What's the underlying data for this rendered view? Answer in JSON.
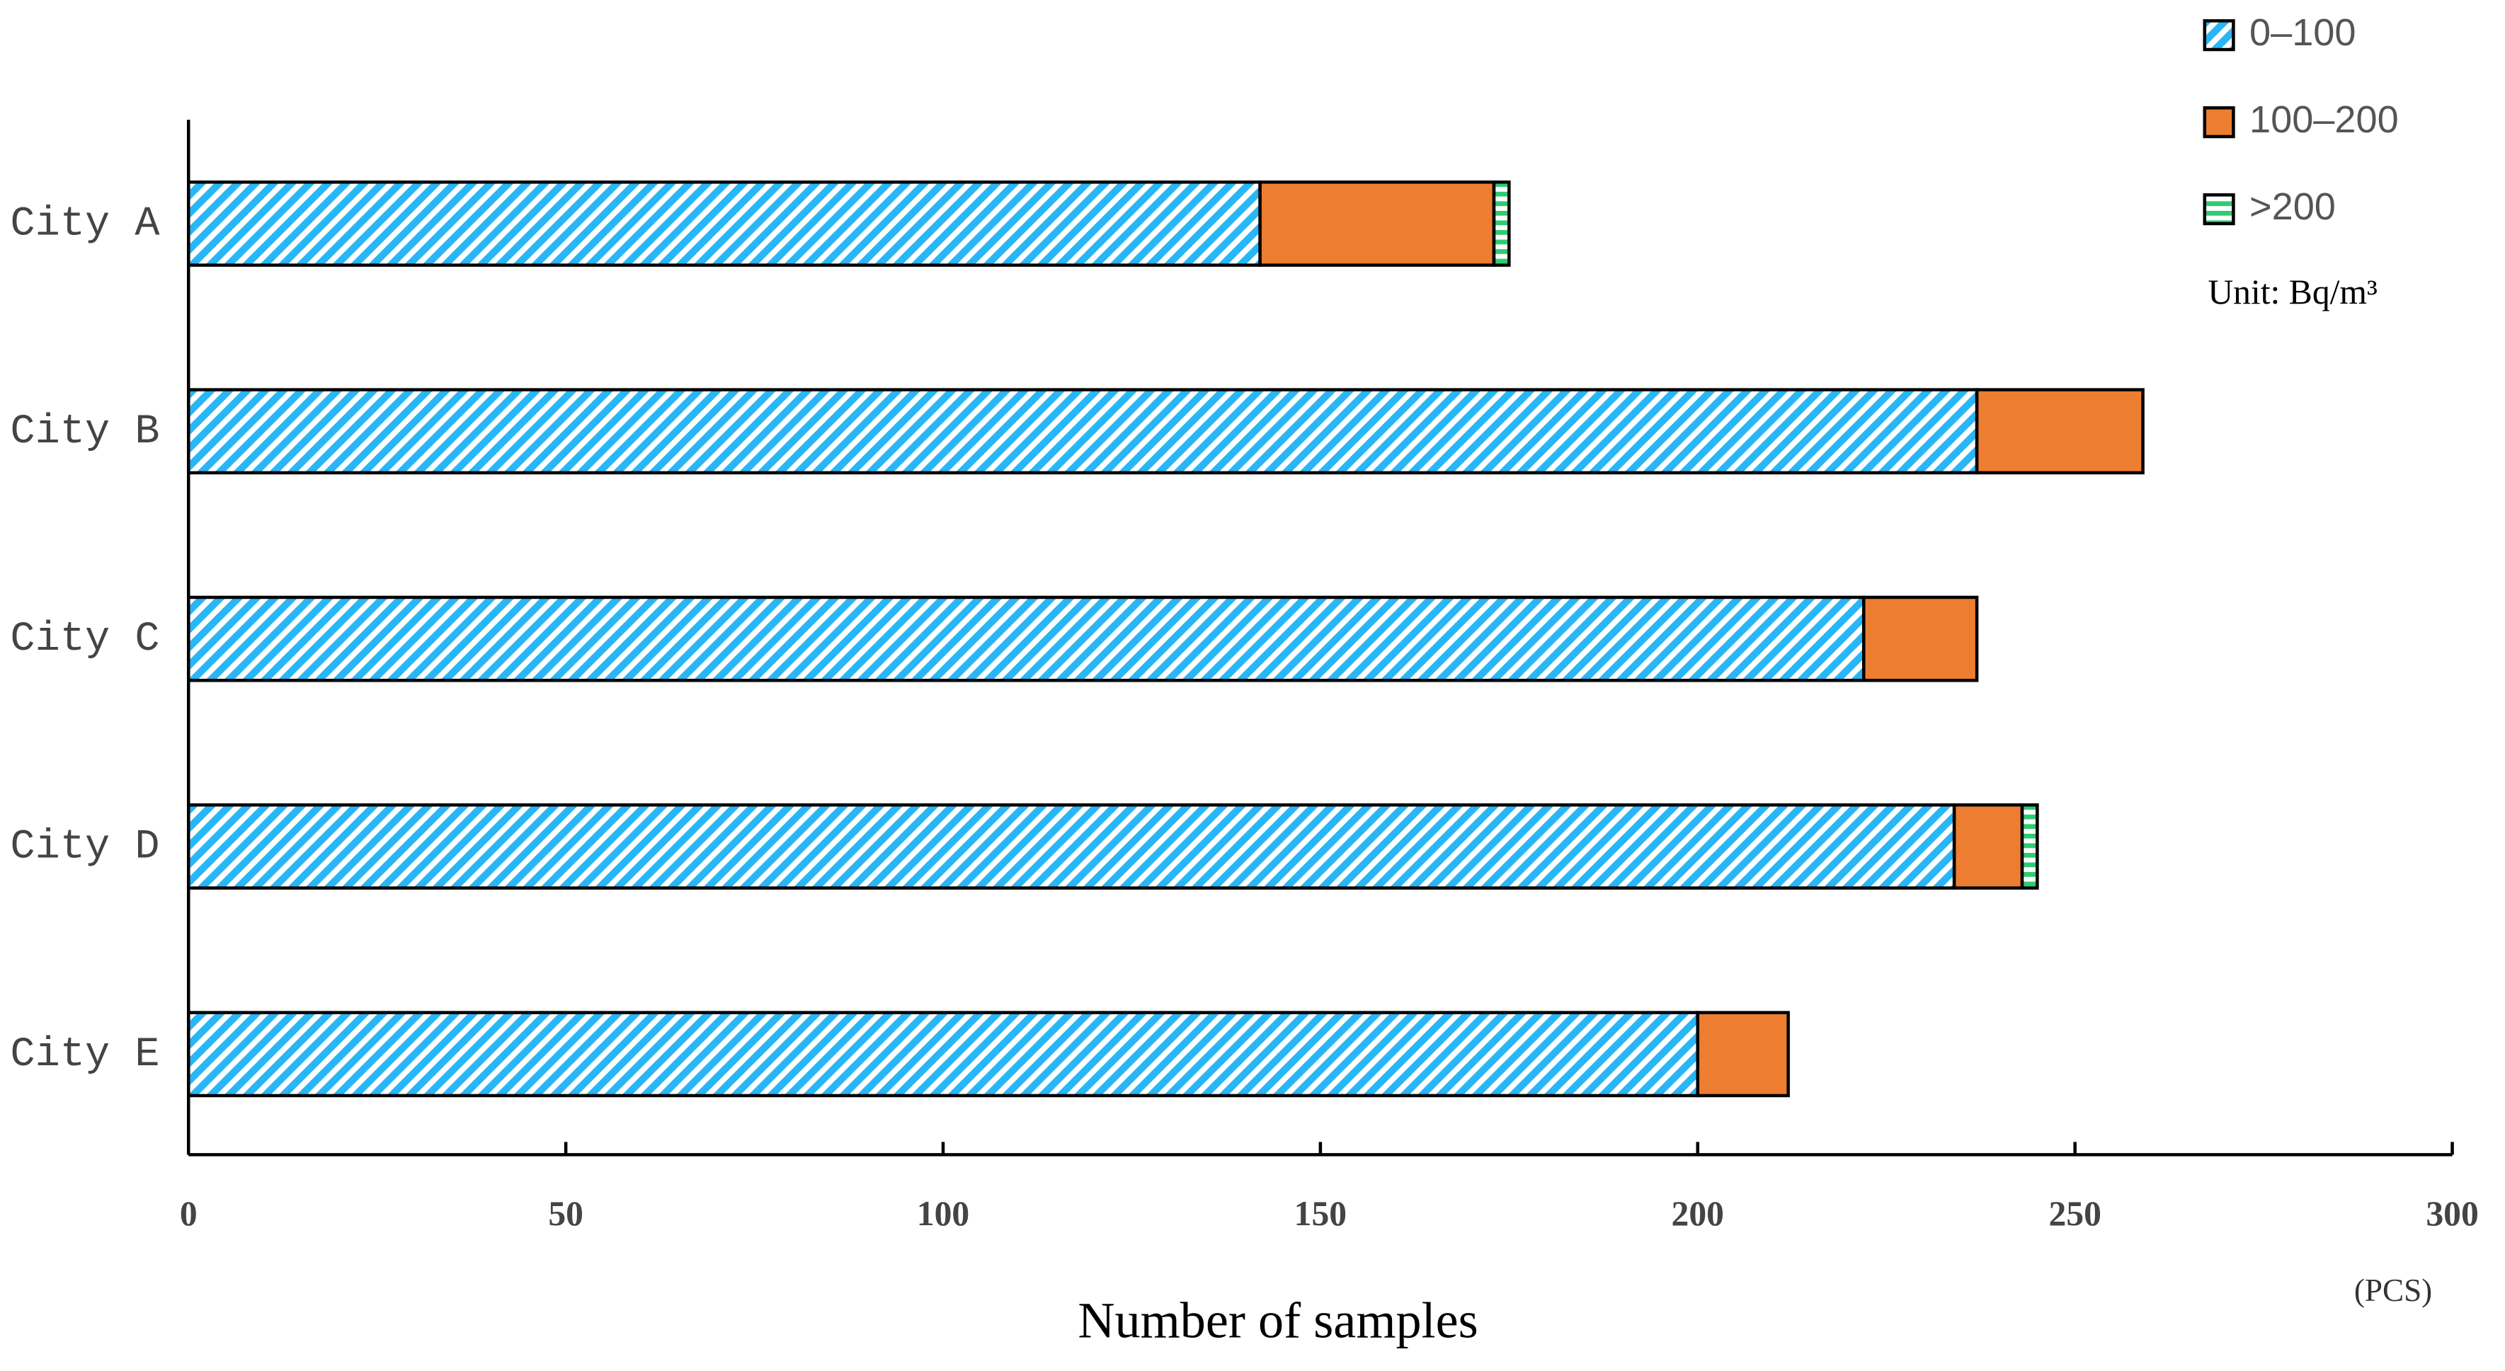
{
  "chart_data": {
    "type": "stacked-hbar",
    "categories": [
      "City A",
      "City B",
      "City C",
      "City D",
      "City E"
    ],
    "series": [
      {
        "name": "0–100",
        "color": "#29b6f6",
        "hatch": "diagonal",
        "values": [
          142,
          237,
          222,
          234,
          200
        ]
      },
      {
        "name": "100–200",
        "color": "#ed7d31",
        "hatch": null,
        "values": [
          31,
          22,
          15,
          9,
          12
        ]
      },
      {
        "name": ">200",
        "color": "#2ecc71",
        "hatch": "horizontal",
        "values": [
          2,
          0,
          0,
          2,
          0
        ]
      }
    ],
    "xlim": [
      0,
      300
    ],
    "xticks": [
      0,
      50,
      100,
      150,
      200,
      250,
      300
    ],
    "x_label": "Number of samples",
    "x_unit": "(PCS)",
    "legend_note": "Unit: Bq/m³",
    "legend_position": "upper right",
    "grid": false
  }
}
